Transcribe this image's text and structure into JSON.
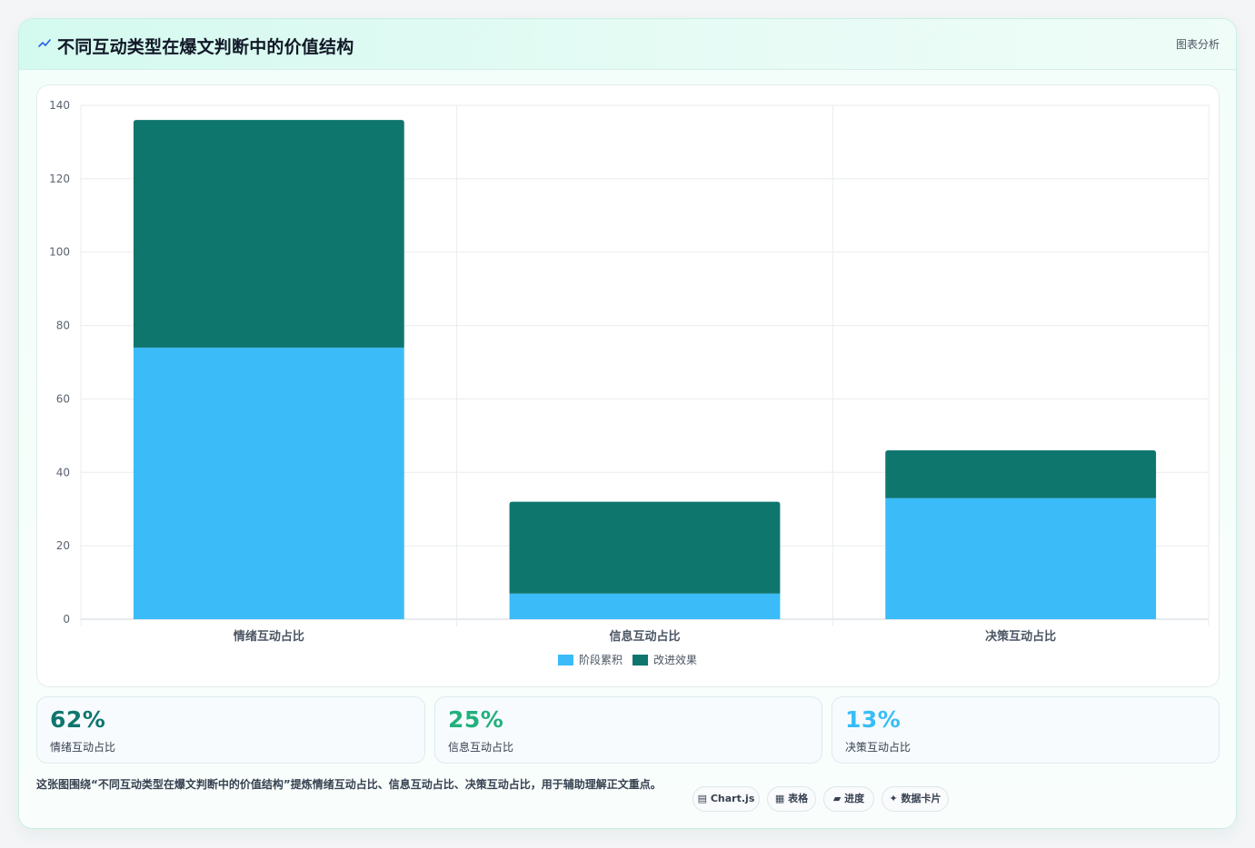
{
  "header": {
    "title": "不同互动类型在爆文判断中的价值结构",
    "badge": "图表分析"
  },
  "colors": {
    "series1": "#3bbcf8",
    "series2": "#0f766e",
    "stat1": "#0f766e",
    "stat2": "#22b07d",
    "stat3": "#38bdf8"
  },
  "chart_data": {
    "type": "bar",
    "stacked": true,
    "categories": [
      "情绪互动占比",
      "信息互动占比",
      "决策互动占比"
    ],
    "series": [
      {
        "name": "阶段累积",
        "values": [
          74,
          7,
          33
        ]
      },
      {
        "name": "改进效果",
        "values": [
          62,
          25,
          13
        ]
      }
    ],
    "ylim": [
      0,
      140
    ],
    "yticks": [
      0,
      20,
      40,
      60,
      80,
      100,
      120,
      140
    ],
    "grid": true,
    "legend": "bottom-center"
  },
  "stats": [
    {
      "value": "62%",
      "label": "情绪互动占比"
    },
    {
      "value": "25%",
      "label": "信息互动占比"
    },
    {
      "value": "13%",
      "label": "决策互动占比"
    }
  ],
  "description": "这张图围绕“不同互动类型在爆文判断中的价值结构”提炼情绪互动占比、信息互动占比、决策互动占比，用于辅助理解正文重点。",
  "tags": [
    {
      "icon": "chart-icon",
      "label": "Chart.js"
    },
    {
      "icon": "table-icon",
      "label": "表格"
    },
    {
      "icon": "progress-icon",
      "label": "进度"
    },
    {
      "icon": "sparkle-icon",
      "label": "数据卡片"
    }
  ]
}
